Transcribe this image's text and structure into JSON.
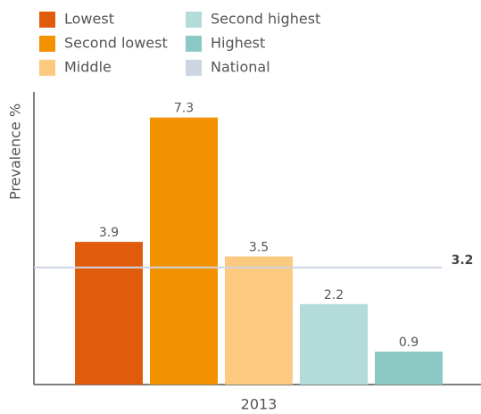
{
  "chart_data": {
    "type": "bar",
    "categories": [
      "2013"
    ],
    "ylabel": "Prevalence %",
    "series": [
      {
        "name": "Lowest",
        "color": "#e05c0c",
        "values": [
          3.9
        ]
      },
      {
        "name": "Second lowest",
        "color": "#f39200",
        "values": [
          7.3
        ]
      },
      {
        "name": "Middle",
        "color": "#fbc97f",
        "values": [
          3.5
        ]
      },
      {
        "name": "Second highest",
        "color": "#b3dcd9",
        "values": [
          2.2
        ]
      },
      {
        "name": "Highest",
        "color": "#8cc8c4",
        "values": [
          0.9
        ]
      }
    ],
    "national": {
      "name": "National",
      "color": "#cdd5e1",
      "value": 3.2
    },
    "ylim": [
      0,
      8
    ]
  }
}
